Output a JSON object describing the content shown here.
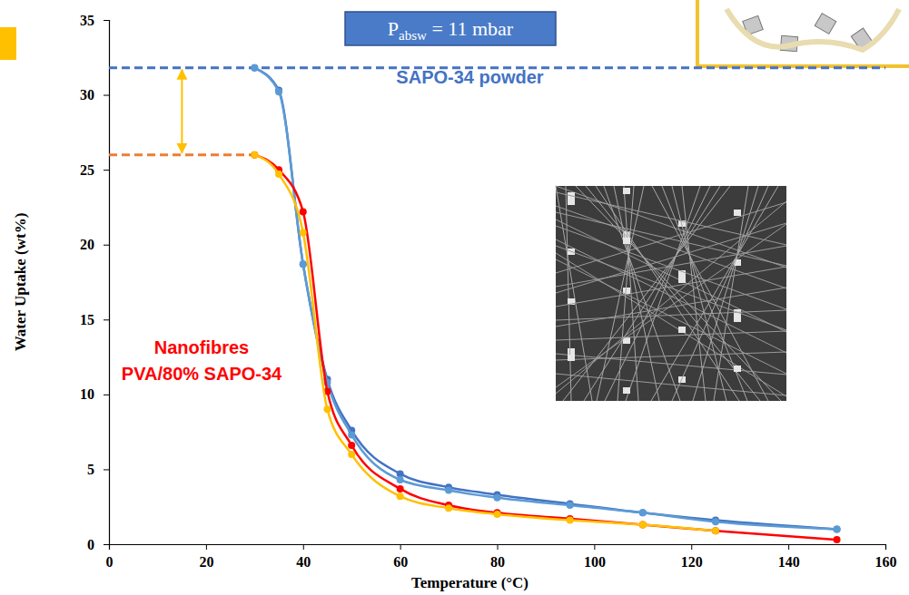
{
  "chart_data": {
    "type": "line",
    "xlabel": "Temperature (°C)",
    "ylabel": "Water Uptake (wt%)",
    "xlim": [
      0,
      160
    ],
    "xticks": [
      0,
      20,
      40,
      60,
      80,
      100,
      120,
      140,
      160
    ],
    "ylim": [
      0,
      35
    ],
    "yticks": [
      0,
      5,
      10,
      15,
      20,
      25,
      30,
      35
    ],
    "grid": false,
    "marker": "circle",
    "series": [
      {
        "color": "#4472c4",
        "x": [
          30,
          35,
          40,
          45,
          50,
          60,
          70,
          80,
          95,
          110,
          125,
          150
        ],
        "values": [
          31.8,
          30.3,
          18.7,
          11,
          7.6,
          4.7,
          3.8,
          3.3,
          2.7,
          2.1,
          1.6,
          1.0
        ]
      },
      {
        "color": "#5b9bd5",
        "x": [
          30,
          35,
          40,
          45,
          50,
          60,
          70,
          80,
          95,
          110,
          125,
          150
        ],
        "values": [
          31.8,
          30.2,
          18.7,
          10.8,
          7.3,
          4.3,
          3.6,
          3.1,
          2.6,
          2.1,
          1.5,
          1.0
        ]
      },
      {
        "color": "#ff0000",
        "x": [
          30,
          35,
          40,
          45,
          50,
          60,
          70,
          80,
          95,
          110,
          125,
          150
        ],
        "values": [
          26,
          25,
          22.2,
          10.2,
          6.6,
          3.7,
          2.6,
          2.1,
          1.7,
          1.3,
          0.9,
          0.3
        ]
      },
      {
        "color": "#ffc000",
        "x": [
          30,
          35,
          40,
          45,
          50,
          60,
          70,
          80,
          95,
          110,
          125
        ],
        "values": [
          26,
          24.7,
          20.8,
          9,
          6,
          3.2,
          2.4,
          2.0,
          1.6,
          1.3,
          0.9
        ]
      }
    ],
    "reference_lines": [
      {
        "y": 31.8,
        "x_start": 0,
        "x_end": 160,
        "color": "#4472c4",
        "line_style": "dashed"
      },
      {
        "y": 26,
        "x_start": 0,
        "x_end": 30,
        "color": "#ed7d31",
        "line_style": "dashed"
      }
    ],
    "annotations": [
      {
        "text": "SAPO-34 powder",
        "color": "#4472c4"
      },
      {
        "lines": [
          "Nanofibres",
          "PVA/80% SAPO-34"
        ],
        "color": "#ff0000"
      },
      {
        "text": "P",
        "subscript": "absw",
        "suffix": " = 11 mbar"
      }
    ]
  }
}
